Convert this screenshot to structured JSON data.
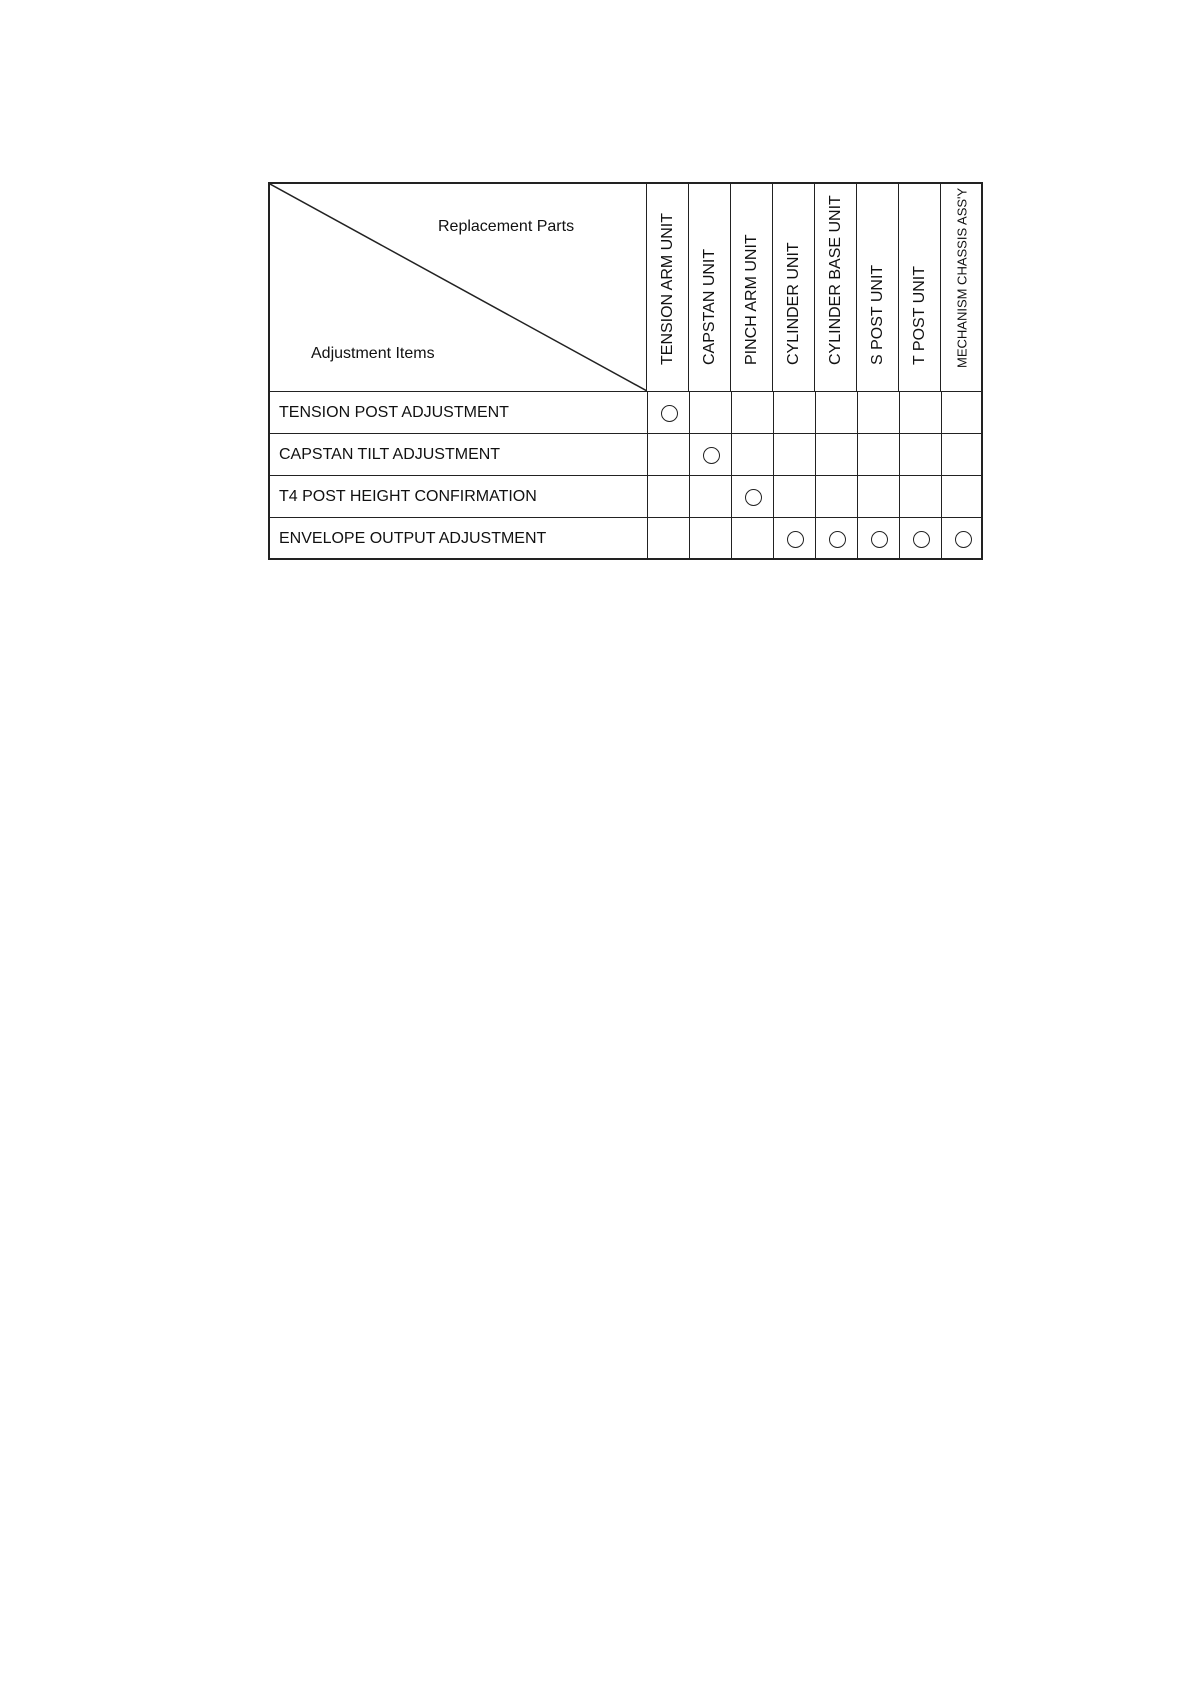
{
  "table": {
    "corner_top_label": "Replacement Parts",
    "corner_bottom_label": "Adjustment Items",
    "columns": [
      "TENSION ARM UNIT",
      "CAPSTAN UNIT",
      "PINCH ARM UNIT",
      "CYLINDER UNIT",
      "CYLINDER BASE UNIT",
      "S POST UNIT",
      "T POST UNIT",
      "MECHANISM CHASSIS ASS'Y"
    ],
    "rows": [
      {
        "label": "TENSION POST ADJUSTMENT",
        "marks": [
          1,
          0,
          0,
          0,
          0,
          0,
          0,
          0
        ]
      },
      {
        "label": "CAPSTAN TILT ADJUSTMENT",
        "marks": [
          0,
          1,
          0,
          0,
          0,
          0,
          0,
          0
        ]
      },
      {
        "label": "T4 POST HEIGHT CONFIRMATION",
        "marks": [
          0,
          0,
          1,
          0,
          0,
          0,
          0,
          0
        ]
      },
      {
        "label": "ENVELOPE OUTPUT ADJUSTMENT",
        "marks": [
          0,
          0,
          0,
          1,
          1,
          1,
          1,
          1
        ]
      }
    ],
    "mark_symbol": "circle"
  }
}
